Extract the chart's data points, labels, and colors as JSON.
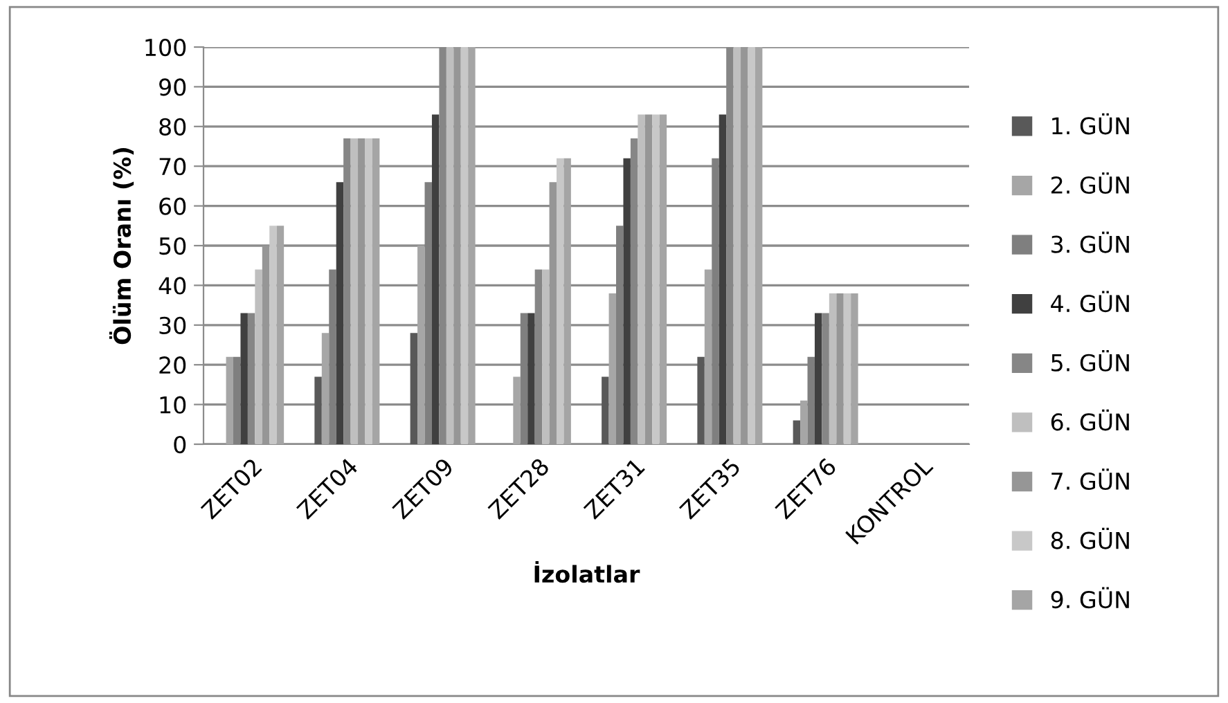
{
  "chart_data": {
    "type": "bar",
    "xlabel": "İzolatlar",
    "ylabel": "Ölüm Oranı (%)",
    "categories": [
      "ZET02",
      "ZET04",
      "ZET09",
      "ZET28",
      "ZET31",
      "ZET35",
      "ZET76",
      "KONTROL"
    ],
    "series": [
      {
        "name": "1. GÜN",
        "color": "#595959",
        "values": [
          0,
          17,
          28,
          0,
          17,
          22,
          6,
          0
        ]
      },
      {
        "name": "2. GÜN",
        "color": "#a6a6a6",
        "values": [
          22,
          28,
          50,
          17,
          38,
          44,
          11,
          0
        ]
      },
      {
        "name": "3. GÜN",
        "color": "#7f7f7f",
        "values": [
          22,
          44,
          66,
          33,
          55,
          72,
          22,
          0
        ]
      },
      {
        "name": "4. GÜN",
        "color": "#404040",
        "values": [
          33,
          66,
          83,
          33,
          72,
          83,
          33,
          0
        ]
      },
      {
        "name": "5. GÜN",
        "color": "#868686",
        "values": [
          33,
          77,
          100,
          44,
          77,
          100,
          33,
          0
        ]
      },
      {
        "name": "6. GÜN",
        "color": "#bfbfbf",
        "values": [
          44,
          77,
          100,
          44,
          83,
          100,
          38,
          0
        ]
      },
      {
        "name": "7. GÜN",
        "color": "#969696",
        "values": [
          50,
          77,
          100,
          66,
          83,
          100,
          38,
          0
        ]
      },
      {
        "name": "8. GÜN",
        "color": "#c8c8c8",
        "values": [
          55,
          77,
          100,
          72,
          83,
          100,
          38,
          0
        ]
      },
      {
        "name": "9. GÜN",
        "color": "#a5a5a5",
        "values": [
          55,
          77,
          100,
          72,
          83,
          100,
          38,
          0
        ]
      }
    ],
    "ylim": [
      0,
      100
    ],
    "yticks": [
      0,
      10,
      20,
      30,
      40,
      50,
      60,
      70,
      80,
      90,
      100
    ],
    "grid": "y",
    "legend": "right"
  }
}
